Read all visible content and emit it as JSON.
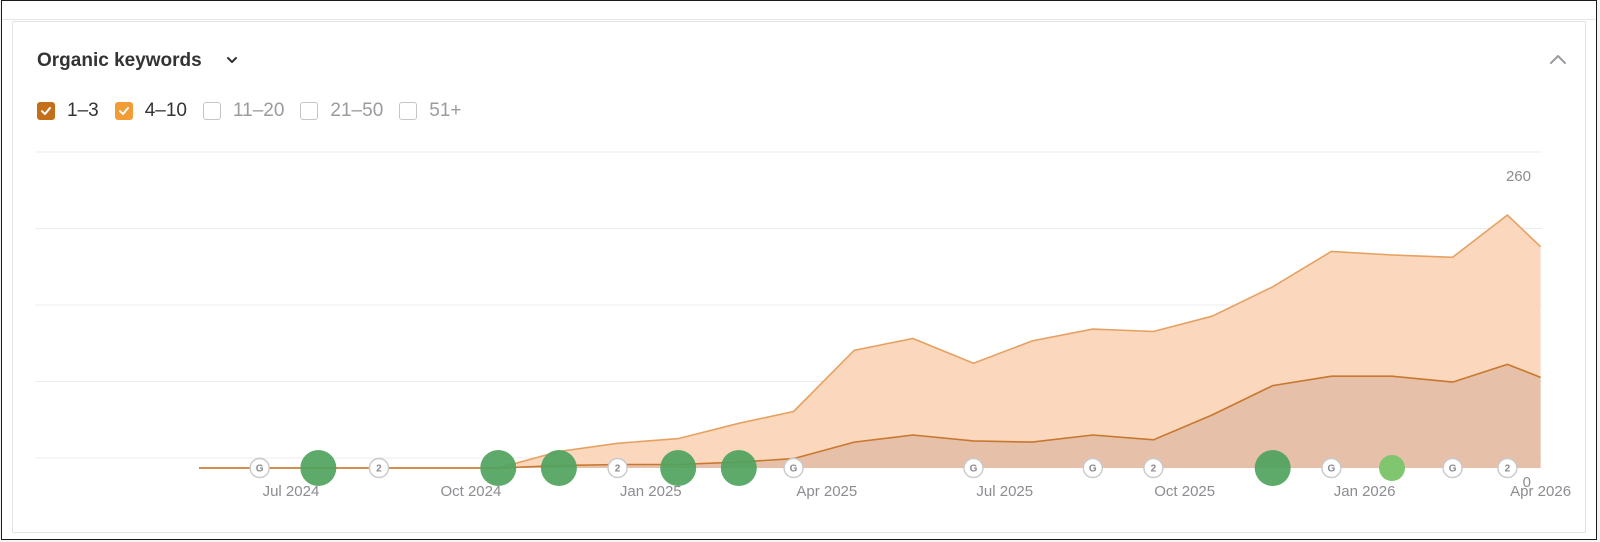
{
  "title": "Organic keywords",
  "filters": [
    {
      "label": "1–3",
      "checked": true,
      "color": "#c46f1a"
    },
    {
      "label": "4–10",
      "checked": true,
      "color": "#f29c38"
    },
    {
      "label": "11–20",
      "checked": false
    },
    {
      "label": "21–50",
      "checked": false
    },
    {
      "label": "51+",
      "checked": false
    }
  ],
  "colors": {
    "area_1_3": "#e6c0a8",
    "area_4_10": "#fbd8bd",
    "line_1_3": "#c8782e",
    "line_4_10": "#e6a162",
    "grid": "#ececef",
    "marker_big": "#4fa35e",
    "marker_light": "#7fc66f"
  },
  "chart_data": {
    "type": "area",
    "stacked": true,
    "x": [
      "2024-05-15",
      "2024-06-15",
      "2024-07-15",
      "2024-08-15",
      "2024-09-15",
      "2024-10-15",
      "2024-11-15",
      "2024-12-15",
      "2025-01-15",
      "2025-02-15",
      "2025-03-15",
      "2025-04-15",
      "2025-05-15",
      "2025-06-15",
      "2025-07-15",
      "2025-08-15",
      "2025-09-15",
      "2025-10-15",
      "2025-11-15",
      "2025-12-15",
      "2026-01-15",
      "2026-02-15",
      "2026-03-15",
      "2026-04-01"
    ],
    "series": [
      {
        "name": "1–3",
        "values": [
          0,
          0,
          0,
          0,
          0,
          0,
          2,
          3,
          3,
          5,
          8,
          22,
          28,
          23,
          22,
          28,
          24,
          45,
          70,
          78,
          78,
          73,
          88,
          77
        ]
      },
      {
        "name": "4–10",
        "values": [
          0,
          0,
          0,
          0,
          0,
          0,
          12,
          18,
          22,
          33,
          40,
          78,
          82,
          66,
          86,
          90,
          92,
          84,
          84,
          106,
          103,
          106,
          127,
          111
        ]
      }
    ],
    "x_ticks": [
      "Jul 2024",
      "Oct 2024",
      "Jan 2025",
      "Apr 2025",
      "Jul 2025",
      "Oct 2025",
      "Jan 2026",
      "Apr 2026"
    ],
    "y_ticks": [
      "0",
      "65",
      "130",
      "195",
      "260"
    ],
    "ylim": [
      0,
      260
    ],
    "grid": true,
    "annotations": [
      {
        "kind": "google",
        "label": "G",
        "date": "2024-06-15"
      },
      {
        "kind": "big",
        "date": "2024-07-15"
      },
      {
        "kind": "count",
        "label": "2",
        "date": "2024-08-15"
      },
      {
        "kind": "big",
        "date": "2024-10-15"
      },
      {
        "kind": "big",
        "date": "2024-11-15"
      },
      {
        "kind": "count",
        "label": "2",
        "date": "2024-12-15"
      },
      {
        "kind": "big",
        "date": "2025-01-15"
      },
      {
        "kind": "big",
        "date": "2025-02-15"
      },
      {
        "kind": "google",
        "label": "G",
        "date": "2025-03-15"
      },
      {
        "kind": "google",
        "label": "G",
        "date": "2025-06-15"
      },
      {
        "kind": "google",
        "label": "G",
        "date": "2025-08-15"
      },
      {
        "kind": "count",
        "label": "2",
        "date": "2025-09-15"
      },
      {
        "kind": "big",
        "date": "2025-11-15"
      },
      {
        "kind": "google",
        "label": "G",
        "date": "2025-12-15"
      },
      {
        "kind": "light",
        "date": "2026-01-15"
      },
      {
        "kind": "google",
        "label": "G",
        "date": "2026-02-15"
      },
      {
        "kind": "count",
        "label": "2",
        "date": "2026-03-15"
      }
    ]
  }
}
